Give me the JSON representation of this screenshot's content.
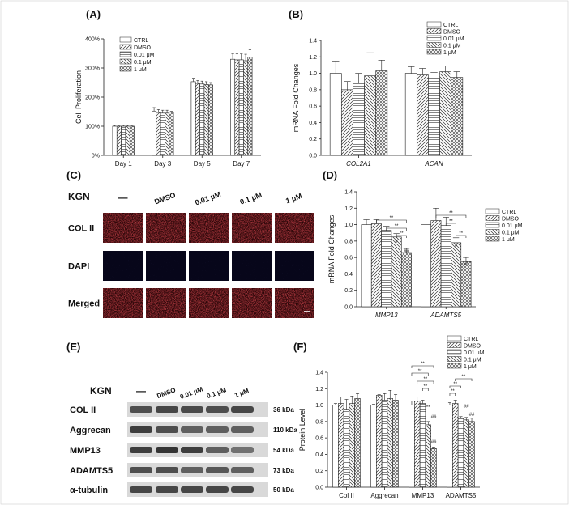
{
  "panels": {
    "A": "(A)",
    "B": "(B)",
    "C": "(C)",
    "D": "(D)",
    "E": "(E)",
    "F": "(F)"
  },
  "legend_labels": [
    "CTRL",
    "DMSO",
    "0.01 μM",
    "0.1 μM",
    "1 μM"
  ],
  "chart_data": [
    {
      "id": "A",
      "type": "bar",
      "ylabel": "Cell Proliferation",
      "ylim": [
        0,
        400
      ],
      "yticks": [
        "0%",
        "100%",
        "200%",
        "300%",
        "400%"
      ],
      "categories": [
        "Day 1",
        "Day 3",
        "Day 5",
        "Day 7"
      ],
      "legend_position": "top-left",
      "series": [
        {
          "name": "CTRL",
          "values": [
            100,
            152,
            253,
            330
          ],
          "errors": [
            3,
            12,
            12,
            18
          ]
        },
        {
          "name": "DMSO",
          "values": [
            100,
            147,
            247,
            328
          ],
          "errors": [
            3,
            10,
            10,
            20
          ]
        },
        {
          "name": "0.01 μM",
          "values": [
            100,
            145,
            245,
            328
          ],
          "errors": [
            3,
            10,
            10,
            20
          ]
        },
        {
          "name": "0.1 μM",
          "values": [
            100,
            145,
            243,
            325
          ],
          "errors": [
            3,
            10,
            10,
            22
          ]
        },
        {
          "name": "1 μM",
          "values": [
            100,
            148,
            242,
            338
          ],
          "errors": [
            3,
            3,
            8,
            25
          ]
        }
      ]
    },
    {
      "id": "B",
      "type": "bar",
      "ylabel": "mRNA Fold Changes",
      "ylim": [
        0,
        1.4
      ],
      "yticks": [
        "0.0",
        "0.2",
        "0.4",
        "0.6",
        "0.8",
        "1.0",
        "1.2",
        "1.4"
      ],
      "categories": [
        "COL2A1",
        "ACAN"
      ],
      "categories_italic": true,
      "legend_position": "top-right",
      "series": [
        {
          "name": "CTRL",
          "values": [
            1.0,
            1.0
          ],
          "errors": [
            0.15,
            0.08
          ]
        },
        {
          "name": "DMSO",
          "values": [
            0.8,
            0.98
          ],
          "errors": [
            0.1,
            0.08
          ]
        },
        {
          "name": "0.01 μM",
          "values": [
            0.88,
            0.94
          ],
          "errors": [
            0.12,
            0.07
          ]
        },
        {
          "name": "0.1 μM",
          "values": [
            0.97,
            1.02
          ],
          "errors": [
            0.28,
            0.07
          ]
        },
        {
          "name": "1 μM",
          "values": [
            1.03,
            0.95
          ],
          "errors": [
            0.13,
            0.07
          ]
        }
      ]
    },
    {
      "id": "D",
      "type": "bar",
      "ylabel": "mRNA Fold Changes",
      "ylim": [
        0,
        1.4
      ],
      "yticks": [
        "0.0",
        "0.2",
        "0.4",
        "0.6",
        "0.8",
        "1.0",
        "1.2",
        "1.4"
      ],
      "categories": [
        "MMP13",
        "ADAMTS5"
      ],
      "categories_italic": true,
      "legend_position": "top-right",
      "series": [
        {
          "name": "CTRL",
          "values": [
            1.0,
            1.0
          ],
          "errors": [
            0.06,
            0.13
          ]
        },
        {
          "name": "DMSO",
          "values": [
            1.01,
            1.05
          ],
          "errors": [
            0.05,
            0.15
          ]
        },
        {
          "name": "0.01 μM",
          "values": [
            0.93,
            0.99
          ],
          "errors": [
            0.05,
            0.1
          ]
        },
        {
          "name": "0.1 μM",
          "values": [
            0.85,
            0.78
          ],
          "errors": [
            0.04,
            0.06
          ]
        },
        {
          "name": "1 μM",
          "values": [
            0.66,
            0.55
          ],
          "errors": [
            0.05,
            0.05
          ]
        }
      ],
      "annotations": {
        "double_star": "**",
        "hash": "#",
        "double_hash": "##"
      }
    },
    {
      "id": "F",
      "type": "bar",
      "ylabel": "Protein Level",
      "ylim": [
        0,
        1.4
      ],
      "yticks": [
        "0.0",
        "0.2",
        "0.4",
        "0.6",
        "0.8",
        "1.0",
        "1.2",
        "1.4"
      ],
      "categories": [
        "Col II",
        "Aggrecan",
        "MMP13",
        "ADAMTS5"
      ],
      "legend_position": "top-right",
      "series": [
        {
          "name": "CTRL",
          "values": [
            1.0,
            1.0,
            1.0,
            1.0
          ],
          "errors": [
            0.02,
            0.01,
            0.05,
            0.03
          ]
        },
        {
          "name": "DMSO",
          "values": [
            1.02,
            1.12,
            1.05,
            1.02
          ],
          "errors": [
            0.08,
            0.01,
            0.05,
            0.04
          ]
        },
        {
          "name": "0.01 μM",
          "values": [
            0.95,
            1.06,
            1.02,
            0.84
          ],
          "errors": [
            0.12,
            0.08,
            0.04,
            0.02
          ]
        },
        {
          "name": "0.1 μM",
          "values": [
            1.02,
            1.08,
            0.76,
            0.82
          ],
          "errors": [
            0.09,
            0.1,
            0.04,
            0.03
          ]
        },
        {
          "name": "1 μM",
          "values": [
            1.08,
            1.06,
            0.47,
            0.8
          ],
          "errors": [
            0.06,
            0.07,
            0.02,
            0.04
          ]
        }
      ],
      "annotations": {
        "double_star": "**",
        "double_hash": "##"
      }
    }
  ],
  "panel_C": {
    "kgn_label": "KGN",
    "columns": [
      "—",
      "DMSO",
      "0.01 μM",
      "0.1 μM",
      "1 μM"
    ],
    "rows": [
      "COL II",
      "DAPI",
      "Merged"
    ]
  },
  "panel_E": {
    "kgn_label": "KGN",
    "columns": [
      "—",
      "DMSO",
      "0.01 μM",
      "0.1 μM",
      "1 μM"
    ],
    "rows": [
      {
        "name": "COL II",
        "size": "36 kDa"
      },
      {
        "name": "Aggrecan",
        "size": "110 kDa"
      },
      {
        "name": "MMP13",
        "size": "54 kDa"
      },
      {
        "name": "ADAMTS5",
        "size": "73 kDa"
      },
      {
        "name": "α-tubulin",
        "size": "50 kDa"
      }
    ]
  },
  "colors": {
    "text": "#111111",
    "bar_stroke": "#222222",
    "fluor_red": "#c0171a",
    "fluor_bg": "#2a0608",
    "dapi_bg": "#07061a",
    "blot_band": "#2b2b2b"
  }
}
